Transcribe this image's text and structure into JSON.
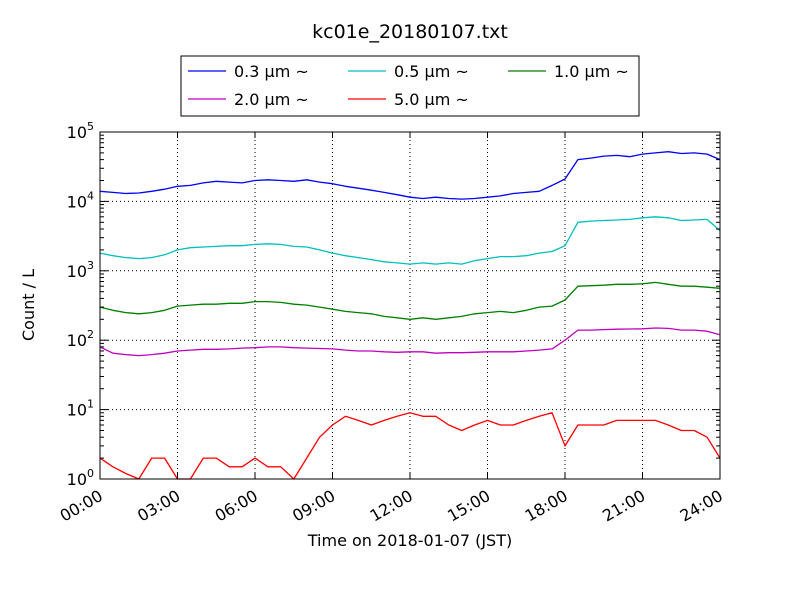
{
  "chart_data": {
    "type": "line",
    "title": "kc01e_20180107.txt",
    "xlabel": "Time on 2018-01-07 (JST)",
    "ylabel": "Count / L",
    "yscale": "log",
    "ylim": [
      1,
      100000
    ],
    "xlim_hours": [
      0,
      24
    ],
    "grid": true,
    "legend_placement": "top",
    "x_tick_labels": [
      "00:00",
      "03:00",
      "06:00",
      "09:00",
      "12:00",
      "15:00",
      "18:00",
      "21:00",
      "24:00"
    ],
    "y_ticks": [
      {
        "base": "10",
        "exp": "0"
      },
      {
        "base": "10",
        "exp": "1"
      },
      {
        "base": "10",
        "exp": "2"
      },
      {
        "base": "10",
        "exp": "3"
      },
      {
        "base": "10",
        "exp": "4"
      },
      {
        "base": "10",
        "exp": "5"
      }
    ],
    "x_hours": [
      0,
      0.5,
      1,
      1.5,
      2,
      2.5,
      3,
      3.5,
      4,
      4.5,
      5,
      5.5,
      6,
      6.5,
      7,
      7.5,
      8,
      8.5,
      9,
      9.5,
      10,
      10.5,
      11,
      11.5,
      12,
      12.5,
      13,
      13.5,
      14,
      14.5,
      15,
      15.5,
      16,
      16.5,
      17,
      17.5,
      18,
      18.5,
      19,
      19.5,
      20,
      20.5,
      21,
      21.5,
      22,
      22.5,
      23,
      23.5,
      24
    ],
    "series": [
      {
        "name": "0.3 μm ~",
        "color": "#0000ff",
        "values": [
          14000,
          13500,
          13000,
          13200,
          14000,
          15000,
          16500,
          17000,
          18500,
          19500,
          19000,
          18500,
          20000,
          20500,
          20000,
          19500,
          20500,
          19000,
          18000,
          16500,
          15500,
          14500,
          13500,
          12500,
          11500,
          11000,
          11500,
          11000,
          10800,
          11000,
          11500,
          12000,
          13000,
          13500,
          14000,
          17000,
          21000,
          40000,
          42000,
          45000,
          46000,
          44000,
          48000,
          50000,
          52000,
          49000,
          50000,
          48000,
          40000
        ]
      },
      {
        "name": "0.5 μm ~",
        "color": "#00bfbf",
        "values": [
          1800,
          1650,
          1550,
          1500,
          1550,
          1700,
          2000,
          2150,
          2200,
          2250,
          2300,
          2300,
          2400,
          2450,
          2400,
          2250,
          2200,
          2000,
          1800,
          1650,
          1550,
          1450,
          1350,
          1300,
          1250,
          1300,
          1250,
          1300,
          1250,
          1400,
          1500,
          1600,
          1600,
          1650,
          1800,
          1900,
          2300,
          5000,
          5200,
          5300,
          5400,
          5500,
          5800,
          6000,
          5800,
          5300,
          5400,
          5500,
          3800
        ]
      },
      {
        "name": "1.0 μm ~",
        "color": "#008000",
        "values": [
          300,
          270,
          250,
          240,
          250,
          270,
          310,
          320,
          330,
          330,
          340,
          340,
          360,
          360,
          350,
          330,
          320,
          300,
          280,
          260,
          250,
          240,
          220,
          210,
          200,
          210,
          200,
          210,
          220,
          240,
          250,
          260,
          250,
          270,
          300,
          310,
          380,
          600,
          610,
          620,
          640,
          640,
          650,
          680,
          640,
          600,
          600,
          580,
          560
        ]
      },
      {
        "name": "2.0 μm ~",
        "color": "#bf00bf",
        "values": [
          80,
          65,
          62,
          60,
          62,
          65,
          70,
          72,
          74,
          74,
          75,
          77,
          78,
          80,
          80,
          78,
          77,
          76,
          75,
          72,
          70,
          70,
          68,
          67,
          68,
          68,
          65,
          66,
          66,
          67,
          68,
          68,
          68,
          70,
          72,
          75,
          100,
          140,
          140,
          142,
          144,
          145,
          146,
          150,
          148,
          140,
          140,
          135,
          120
        ]
      },
      {
        "name": "5.0 μm ~",
        "color": "#ff0000",
        "values": [
          2,
          1.5,
          1.2,
          1,
          2,
          2,
          1,
          1,
          2,
          2,
          1.5,
          1.5,
          2,
          1.5,
          1.5,
          1,
          2,
          4,
          6,
          8,
          7,
          6,
          7,
          8,
          9,
          8,
          8,
          6,
          5,
          6,
          7,
          6,
          6,
          7,
          8,
          9,
          3,
          6,
          6,
          6,
          7,
          7,
          7,
          7,
          6,
          5,
          5,
          4,
          2
        ]
      }
    ]
  }
}
